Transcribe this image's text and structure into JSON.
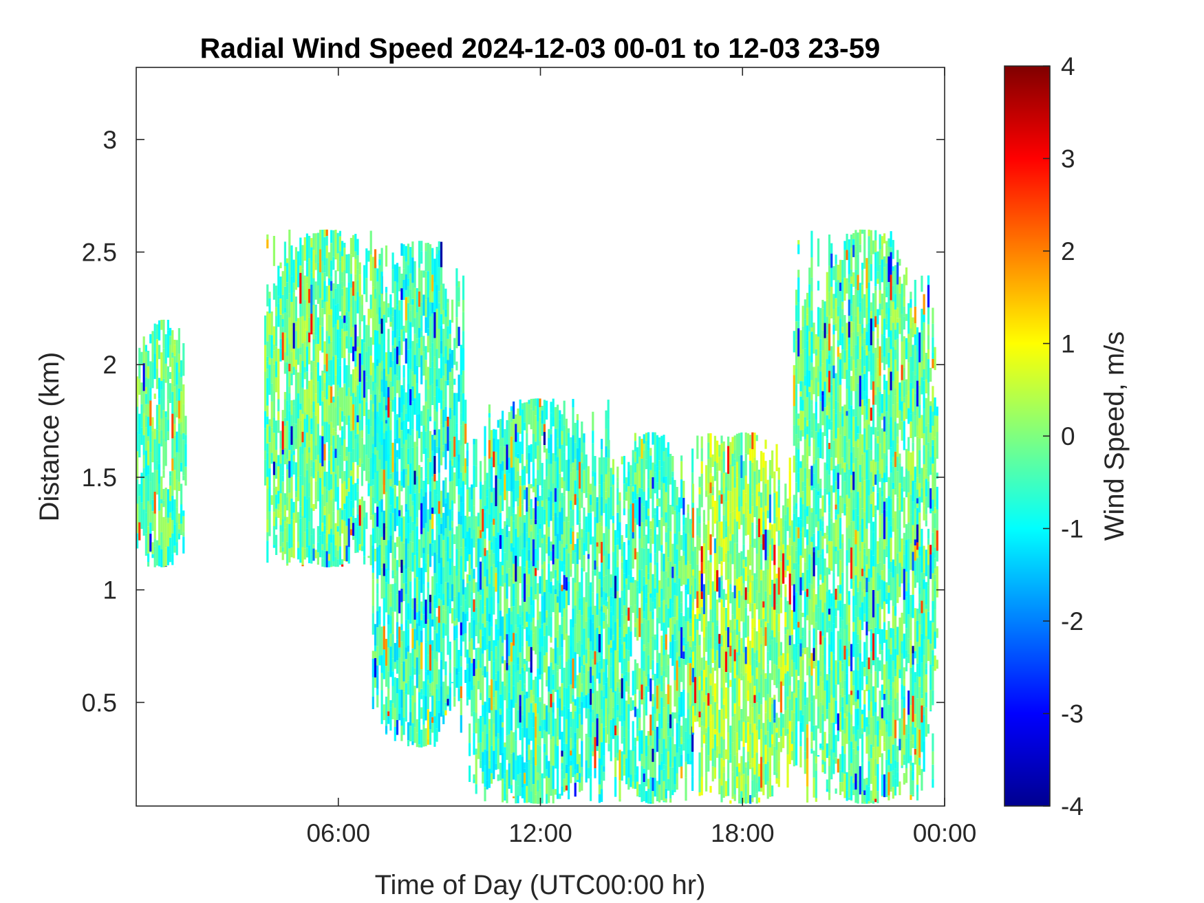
{
  "chart_data": {
    "type": "heatmap",
    "title": "Radial Wind Speed 2024-12-03 00-01 to 12-03 23-59",
    "xlabel": "Time of Day (UTC00:00 hr)",
    "ylabel": "Distance (km)",
    "xlim": [
      0,
      24
    ],
    "ylim": [
      0.04,
      3.32
    ],
    "x_ticks": [
      {
        "value": 6,
        "label": "06:00"
      },
      {
        "value": 12,
        "label": "12:00"
      },
      {
        "value": 18,
        "label": "18:00"
      },
      {
        "value": 24,
        "label": "00:00"
      }
    ],
    "y_ticks": [
      {
        "value": 0.5,
        "label": "0.5"
      },
      {
        "value": 1,
        "label": "1"
      },
      {
        "value": 1.5,
        "label": "1.5"
      },
      {
        "value": 2,
        "label": "2"
      },
      {
        "value": 2.5,
        "label": "2.5"
      },
      {
        "value": 3,
        "label": "3"
      }
    ],
    "colorbar": {
      "label": "Wind Speed, m/s",
      "colormap": "jet",
      "range": [
        -4,
        4
      ],
      "ticks": [
        {
          "value": 4,
          "label": "4"
        },
        {
          "value": 3,
          "label": "3"
        },
        {
          "value": 2,
          "label": "2"
        },
        {
          "value": 1,
          "label": "1"
        },
        {
          "value": 0,
          "label": "0"
        },
        {
          "value": -1,
          "label": "-1"
        },
        {
          "value": -2,
          "label": "-2"
        },
        {
          "value": -3,
          "label": "-3"
        },
        {
          "value": -4,
          "label": "-4"
        }
      ]
    },
    "grid": false,
    "data_regions": [
      {
        "t_start": 0.0,
        "t_end": 1.5,
        "d_bottom": 1.1,
        "d_top": 2.2,
        "mean_speed": -0.3
      },
      {
        "t_start": 3.8,
        "t_end": 7.5,
        "d_bottom": 1.1,
        "d_top": 2.6,
        "mean_speed": -0.2
      },
      {
        "t_start": 7.0,
        "t_end": 9.8,
        "d_bottom": 0.3,
        "d_top": 2.55,
        "mean_speed": -0.6
      },
      {
        "t_start": 9.8,
        "t_end": 14.0,
        "d_bottom": 0.05,
        "d_top": 1.85,
        "mean_speed": -0.5
      },
      {
        "t_start": 14.0,
        "t_end": 16.5,
        "d_bottom": 0.05,
        "d_top": 1.7,
        "mean_speed": -0.4
      },
      {
        "t_start": 16.5,
        "t_end": 19.5,
        "d_bottom": 0.05,
        "d_top": 1.7,
        "mean_speed": 0.2
      },
      {
        "t_start": 19.5,
        "t_end": 23.8,
        "d_bottom": 0.05,
        "d_top": 2.6,
        "mean_speed": -0.3
      }
    ],
    "colors": {
      "background": "#ffffff",
      "axis": "#262626"
    }
  }
}
